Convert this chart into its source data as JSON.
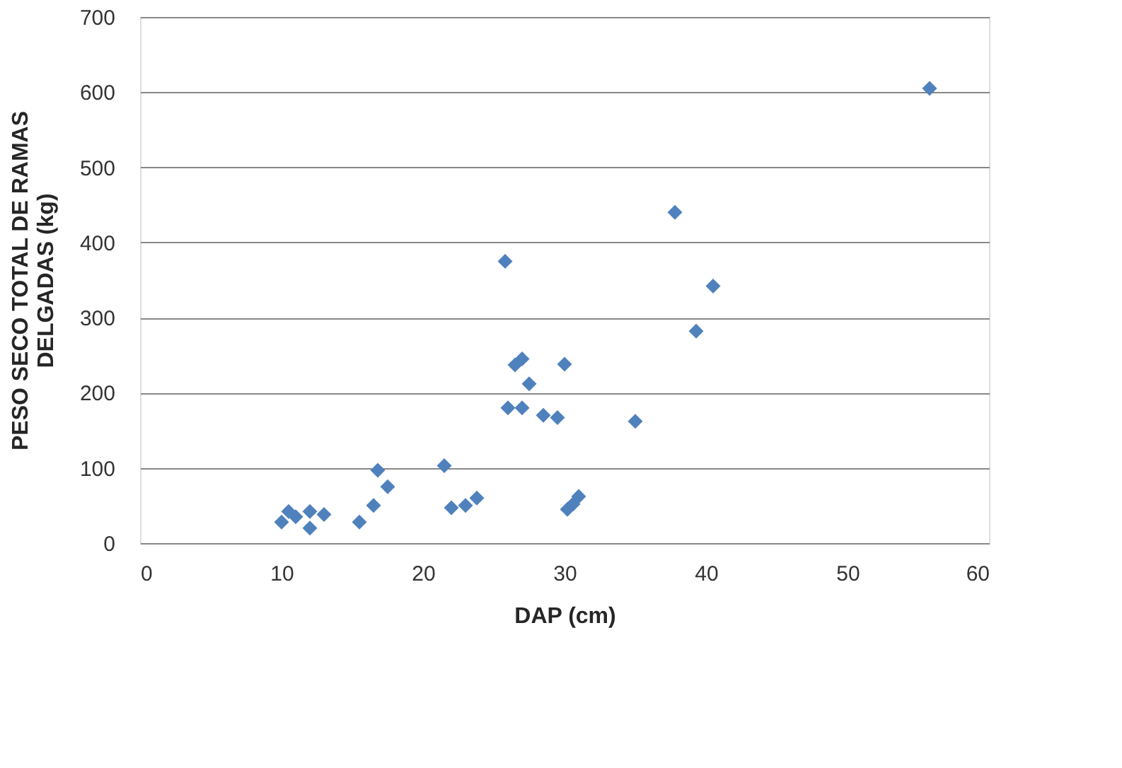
{
  "chart_data": {
    "type": "scatter",
    "xlabel": "DAP (cm)",
    "ylabel": "PESO SECO TOTAL DE RAMAS DELGADAS  (kg)",
    "x": [
      10,
      10.5,
      11,
      12,
      12,
      13,
      15.5,
      16.5,
      16.8,
      17.5,
      21.5,
      22,
      23,
      23.8,
      25.8,
      26,
      26.5,
      27,
      27,
      27.5,
      28.5,
      29.5,
      30,
      30.2,
      30.6,
      31,
      35,
      37.8,
      39.3,
      40.5,
      55.8
    ],
    "series": [
      {
        "color": "#4f81bd",
        "values": [
          28,
          42,
          35,
          20,
          42,
          38,
          28,
          50,
          97,
          75,
          103,
          47,
          50,
          60,
          375,
          180,
          237,
          245,
          180,
          212,
          170,
          167,
          238,
          45,
          52,
          62,
          162,
          440,
          282,
          342,
          605
        ]
      }
    ],
    "xlim": [
      0,
      60
    ],
    "xticks": [
      0,
      10,
      20,
      30,
      40,
      50,
      60
    ],
    "ylim": [
      0,
      700
    ],
    "yticks": [
      0,
      100,
      200,
      300,
      400,
      500,
      600,
      700
    ],
    "grid": "y",
    "marker": "diamond",
    "legend": false
  }
}
